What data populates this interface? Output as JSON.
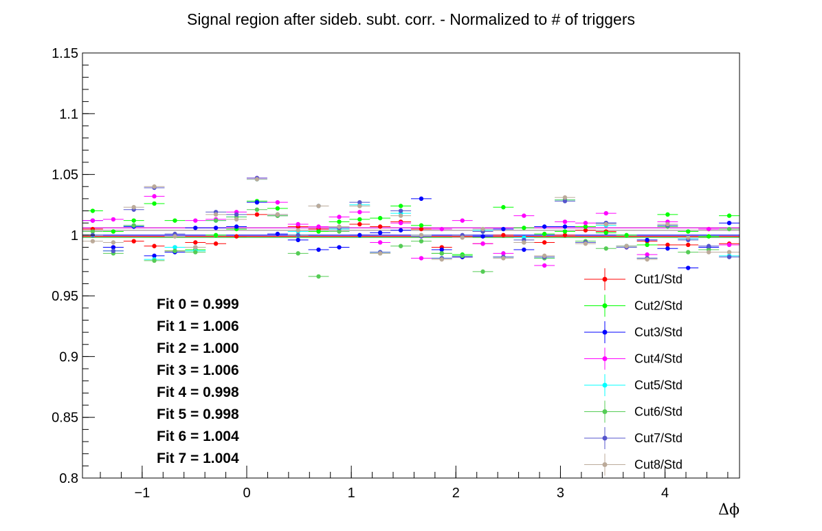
{
  "chart_data": {
    "type": "scatter",
    "title": "Signal region after sideb. subt. corr. - Normalized to # of triggers",
    "xlabel": "Δϕ",
    "ylabel": "",
    "xlim": [
      -1.5708,
      4.7124
    ],
    "ylim": [
      0.8,
      1.15
    ],
    "x_ticks": [
      -1,
      0,
      1,
      2,
      3,
      4
    ],
    "x_tick_labels": [
      "−1",
      "0",
      "1",
      "2",
      "3",
      "4"
    ],
    "y_ticks": [
      0.8,
      0.85,
      0.9,
      0.95,
      1.0,
      1.05,
      1.1,
      1.15
    ],
    "y_tick_labels": [
      "0.8",
      "0.85",
      "0.9",
      "0.95",
      "1",
      "1.05",
      "1.1",
      "1.15"
    ],
    "x_errors": 0.0982,
    "grid": false,
    "legend_position": "bottom-right",
    "x": [
      -1.473,
      -1.276,
      -1.08,
      -0.884,
      -0.687,
      -0.491,
      -0.295,
      -0.098,
      0.098,
      0.295,
      0.491,
      0.687,
      0.884,
      1.08,
      1.276,
      1.473,
      1.669,
      1.865,
      2.062,
      2.258,
      2.454,
      2.651,
      2.847,
      3.043,
      3.24,
      3.436,
      3.632,
      3.829,
      4.025,
      4.221,
      4.418,
      4.614
    ],
    "series": [
      {
        "name": "Cut1/Std",
        "color": "#ff0000",
        "values": [
          1.005,
          0.99,
          0.995,
          0.991,
          0.987,
          0.994,
          0.993,
          0.999,
          1.017,
          1.016,
          1.007,
          1.005,
          1.005,
          1.009,
          1.007,
          1.011,
          1.005,
          0.99,
          0.982,
          0.993,
          1.0,
          0.998,
          0.994,
          1.0,
          1.004,
          1.003,
          0.99,
          0.995,
          0.992,
          0.992,
          1.005,
          0.993
        ]
      },
      {
        "name": "Cut2/Std",
        "color": "#00ff00",
        "values": [
          1.02,
          1.003,
          1.012,
          1.026,
          1.012,
          0.988,
          1.0,
          1.005,
          1.028,
          1.022,
          1.0,
          1.003,
          1.011,
          1.013,
          1.014,
          1.024,
          1.008,
          0.985,
          0.984,
          1.003,
          1.023,
          1.006,
          1.001,
          1.003,
          1.007,
          1.002,
          1.0,
          0.992,
          1.017,
          1.003,
          0.999,
          1.016
        ]
      },
      {
        "name": "Cut3/Std",
        "color": "#0000ff",
        "values": [
          1.012,
          0.99,
          1.007,
          0.983,
          0.986,
          1.006,
          1.006,
          1.007,
          1.027,
          1.001,
          0.996,
          0.988,
          0.99,
          1.0,
          1.002,
          1.004,
          1.03,
          0.988,
          0.982,
          0.999,
          1.005,
          0.988,
          1.007,
          1.007,
          0.994,
          1.01,
          0.991,
          0.996,
          0.989,
          0.973,
          0.99,
          1.01
        ]
      },
      {
        "name": "Cut4/Std",
        "color": "#ff00ff",
        "values": [
          1.012,
          1.013,
          1.008,
          1.032,
          0.99,
          1.012,
          1.013,
          1.019,
          1.047,
          1.027,
          1.009,
          1.007,
          1.015,
          1.019,
          0.994,
          1.01,
          0.981,
          1.005,
          1.012,
          0.993,
          0.985,
          1.016,
          0.975,
          1.011,
          1.01,
          1.018,
          0.99,
          0.984,
          1.011,
          0.997,
          1.005,
          0.992
        ]
      },
      {
        "name": "Cut5/Std",
        "color": "#00ffff",
        "values": [
          1.0,
          0.987,
          1.008,
          0.98,
          0.99,
          0.987,
          1.012,
          1.015,
          1.046,
          1.016,
          1.003,
          1.024,
          1.005,
          1.025,
          0.986,
          1.018,
          1.0,
          0.981,
          0.983,
          1.004,
          0.982,
          0.998,
          0.981,
          1.029,
          0.994,
          1.008,
          0.991,
          0.981,
          1.008,
          0.997,
          0.988,
          0.983
        ]
      },
      {
        "name": "Cut6/Std",
        "color": "#55cc55",
        "values": [
          1.003,
          0.985,
          1.008,
          0.979,
          0.987,
          0.986,
          1.012,
          1.015,
          1.021,
          1.016,
          0.985,
          0.966,
          1.003,
          1.024,
          0.985,
          0.991,
          0.995,
          0.985,
          0.983,
          0.97,
          0.982,
          0.994,
          0.981,
          1.029,
          0.995,
          0.989,
          0.991,
          0.981,
          1.007,
          0.986,
          0.988,
          1.005
        ]
      },
      {
        "name": "Cut7/Std",
        "color": "#5555cc",
        "values": [
          1.0,
          0.987,
          1.021,
          1.039,
          1.001,
          0.99,
          1.019,
          1.017,
          1.047,
          1.017,
          1.0,
          1.024,
          1.006,
          1.027,
          0.986,
          1.02,
          0.999,
          0.981,
          1.0,
          1.003,
          0.982,
          0.996,
          0.982,
          1.028,
          0.994,
          1.01,
          0.99,
          0.981,
          1.008,
          0.996,
          0.991,
          0.982
        ]
      },
      {
        "name": "Cut8/Std",
        "color": "#bbaa99",
        "values": [
          0.995,
          0.994,
          1.023,
          1.04,
          0.999,
          0.99,
          1.017,
          1.013,
          1.046,
          1.017,
          1.004,
          1.024,
          1.007,
          1.024,
          0.985,
          1.016,
          1.0,
          0.98,
          0.998,
          1.005,
          0.981,
          0.994,
          0.983,
          1.031,
          0.993,
          1.009,
          0.991,
          0.98,
          1.009,
          0.998,
          0.986,
          0.986
        ]
      }
    ],
    "fit_lines": [
      {
        "value": 0.999,
        "color": "#ff0000"
      },
      {
        "value": 1.006,
        "color": "#00ff00"
      },
      {
        "value": 1.0,
        "color": "#0000ff"
      },
      {
        "value": 1.006,
        "color": "#ff00ff"
      },
      {
        "value": 0.998,
        "color": "#00ffff"
      },
      {
        "value": 0.998,
        "color": "#55cc55"
      },
      {
        "value": 1.004,
        "color": "#5555cc"
      },
      {
        "value": 1.004,
        "color": "#bbaa99"
      }
    ],
    "annotations": [
      "Fit 0 = 0.999",
      "Fit 1 = 1.006",
      "Fit 2 = 1.000",
      "Fit 3 = 1.006",
      "Fit 4 = 0.998",
      "Fit 5 = 0.998",
      "Fit 6 = 1.004",
      "Fit 7 = 1.004"
    ]
  }
}
